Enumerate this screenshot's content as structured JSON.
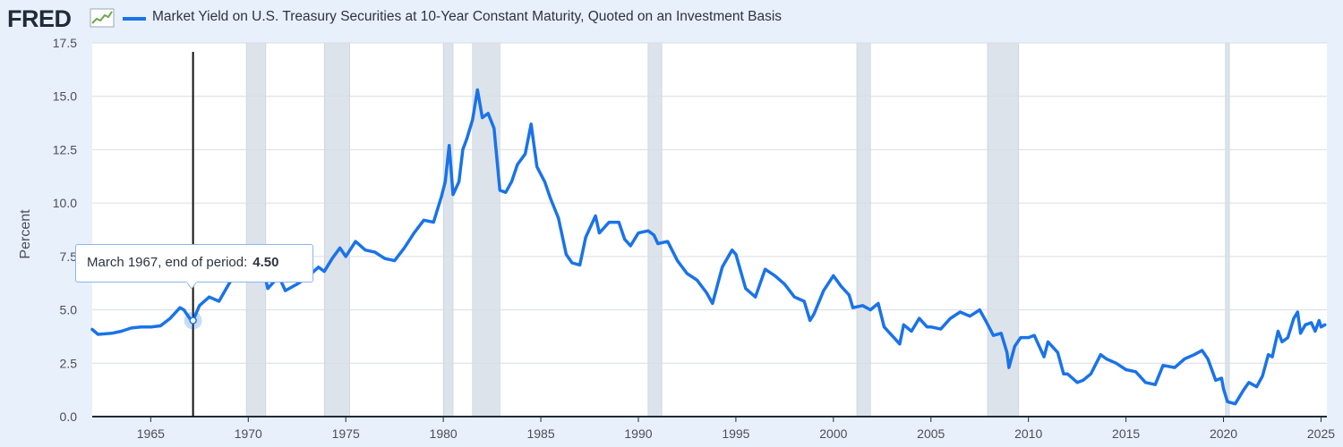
{
  "header": {
    "logo_text": "FRED",
    "logo_icon": "trend-line-icon",
    "legend_label": "Market Yield on U.S. Treasury Securities at 10-Year Constant Maturity, Quoted on an Investment Basis"
  },
  "tooltip": {
    "label": "March 1967, end of period:",
    "value": "4.50",
    "date": 1967.17,
    "yield": 4.5
  },
  "colors": {
    "background": "#e8f0fb",
    "plot_bg": "#ffffff",
    "line": "#1a73e8",
    "recession": "#dde3ea",
    "grid": "#d9dde3"
  },
  "chart_data": {
    "type": "line",
    "title": "Market Yield on U.S. Treasury Securities at 10-Year Constant Maturity, Quoted on an Investment Basis",
    "xlabel": "",
    "ylabel": "Percent",
    "xlim": [
      1962.0,
      2025.3
    ],
    "ylim": [
      0,
      17.5
    ],
    "yticks": [
      "0.0",
      "2.5",
      "5.0",
      "7.5",
      "10.0",
      "12.5",
      "15.0",
      "17.5"
    ],
    "ytick_values": [
      0,
      2.5,
      5,
      7.5,
      10,
      12.5,
      15,
      17.5
    ],
    "xticks": [
      "1965",
      "1970",
      "1975",
      "1980",
      "1985",
      "1990",
      "1995",
      "2000",
      "2005",
      "2010",
      "2015",
      "2020",
      "2025"
    ],
    "xtick_values": [
      1965,
      1970,
      1975,
      1980,
      1985,
      1990,
      1995,
      2000,
      2005,
      2010,
      2015,
      2020,
      2025
    ],
    "grid": true,
    "recessions": [
      [
        1969.9,
        1970.9
      ],
      [
        1973.9,
        1975.2
      ],
      [
        1980.0,
        1980.5
      ],
      [
        1981.5,
        1982.9
      ],
      [
        1990.5,
        1991.2
      ],
      [
        2001.2,
        2001.9
      ],
      [
        2007.9,
        2009.5
      ],
      [
        2020.1,
        2020.3
      ]
    ],
    "series": [
      {
        "name": "Market Yield on U.S. Treasury Securities at 10-Year Constant Maturity, Quoted on an Investment Basis",
        "x": [
          1962.0,
          1962.3,
          1963.0,
          1963.5,
          1964.0,
          1964.5,
          1965.0,
          1965.5,
          1966.0,
          1966.5,
          1966.7,
          1967.0,
          1967.17,
          1967.5,
          1968.0,
          1968.5,
          1969.0,
          1969.5,
          1970.0,
          1970.5,
          1970.9,
          1971.0,
          1971.3,
          1971.6,
          1971.9,
          1972.5,
          1973.0,
          1973.6,
          1973.9,
          1974.3,
          1974.7,
          1975.0,
          1975.5,
          1976.0,
          1976.5,
          1977.0,
          1977.5,
          1978.0,
          1978.5,
          1979.0,
          1979.5,
          1979.9,
          1980.1,
          1980.3,
          1980.5,
          1980.8,
          1981.0,
          1981.2,
          1981.5,
          1981.75,
          1982.0,
          1982.3,
          1982.6,
          1982.9,
          1983.2,
          1983.5,
          1983.8,
          1984.2,
          1984.5,
          1984.8,
          1985.2,
          1985.5,
          1985.9,
          1986.3,
          1986.6,
          1987.0,
          1987.3,
          1987.8,
          1988.0,
          1988.5,
          1989.0,
          1989.3,
          1989.6,
          1990.0,
          1990.5,
          1990.8,
          1991.0,
          1991.5,
          1992.0,
          1992.5,
          1993.0,
          1993.5,
          1993.8,
          1994.3,
          1994.8,
          1995.0,
          1995.5,
          1996.0,
          1996.5,
          1997.0,
          1997.5,
          1998.0,
          1998.5,
          1998.8,
          1999.0,
          1999.5,
          2000.0,
          2000.4,
          2000.8,
          2001.0,
          2001.5,
          2001.9,
          2002.3,
          2002.6,
          2002.9,
          2003.4,
          2003.6,
          2004.0,
          2004.4,
          2004.8,
          2005.0,
          2005.5,
          2006.0,
          2006.5,
          2007.0,
          2007.5,
          2007.8,
          2008.2,
          2008.6,
          2008.9,
          2009.0,
          2009.3,
          2009.6,
          2010.0,
          2010.3,
          2010.8,
          2011.0,
          2011.5,
          2011.8,
          2012.0,
          2012.5,
          2012.8,
          2013.2,
          2013.7,
          2014.0,
          2014.5,
          2015.0,
          2015.5,
          2016.0,
          2016.5,
          2016.9,
          2017.5,
          2018.0,
          2018.5,
          2018.9,
          2019.2,
          2019.6,
          2019.9,
          2020.0,
          2020.2,
          2020.6,
          2021.0,
          2021.3,
          2021.7,
          2022.0,
          2022.3,
          2022.5,
          2022.8,
          2023.0,
          2023.3,
          2023.6,
          2023.8,
          2023.95,
          2024.2,
          2024.5,
          2024.7,
          2024.9,
          2025.0,
          2025.2
        ],
        "y": [
          4.08,
          3.85,
          3.9,
          4.0,
          4.15,
          4.2,
          4.2,
          4.25,
          4.6,
          5.1,
          5.0,
          4.6,
          4.5,
          5.2,
          5.6,
          5.4,
          6.2,
          6.9,
          7.8,
          7.5,
          6.4,
          6.0,
          6.3,
          6.5,
          5.9,
          6.2,
          6.5,
          7.0,
          6.8,
          7.4,
          7.9,
          7.5,
          8.2,
          7.8,
          7.7,
          7.4,
          7.3,
          7.9,
          8.6,
          9.2,
          9.1,
          10.3,
          11.0,
          12.7,
          10.4,
          11.0,
          12.5,
          13.0,
          13.9,
          15.3,
          14.0,
          14.2,
          13.5,
          10.6,
          10.5,
          11.0,
          11.8,
          12.3,
          13.7,
          11.7,
          11.0,
          10.2,
          9.3,
          7.6,
          7.2,
          7.1,
          8.4,
          9.4,
          8.6,
          9.1,
          9.1,
          8.3,
          8.0,
          8.6,
          8.7,
          8.5,
          8.1,
          8.2,
          7.3,
          6.7,
          6.4,
          5.8,
          5.3,
          7.0,
          7.8,
          7.6,
          6.0,
          5.6,
          6.9,
          6.6,
          6.2,
          5.6,
          5.4,
          4.5,
          4.8,
          5.9,
          6.6,
          6.1,
          5.7,
          5.1,
          5.2,
          5.0,
          5.3,
          4.2,
          3.9,
          3.4,
          4.3,
          4.0,
          4.6,
          4.2,
          4.2,
          4.1,
          4.6,
          4.9,
          4.7,
          5.0,
          4.5,
          3.8,
          3.9,
          3.0,
          2.3,
          3.3,
          3.7,
          3.7,
          3.8,
          2.8,
          3.5,
          3.0,
          2.0,
          2.0,
          1.6,
          1.7,
          2.0,
          2.9,
          2.7,
          2.5,
          2.2,
          2.1,
          1.6,
          1.5,
          2.4,
          2.3,
          2.7,
          2.9,
          3.1,
          2.7,
          1.7,
          1.8,
          1.3,
          0.7,
          0.6,
          1.2,
          1.6,
          1.4,
          1.9,
          2.9,
          2.8,
          4.0,
          3.5,
          3.7,
          4.6,
          4.9,
          3.9,
          4.3,
          4.4,
          4.0,
          4.5,
          4.2,
          4.3
        ]
      }
    ]
  }
}
